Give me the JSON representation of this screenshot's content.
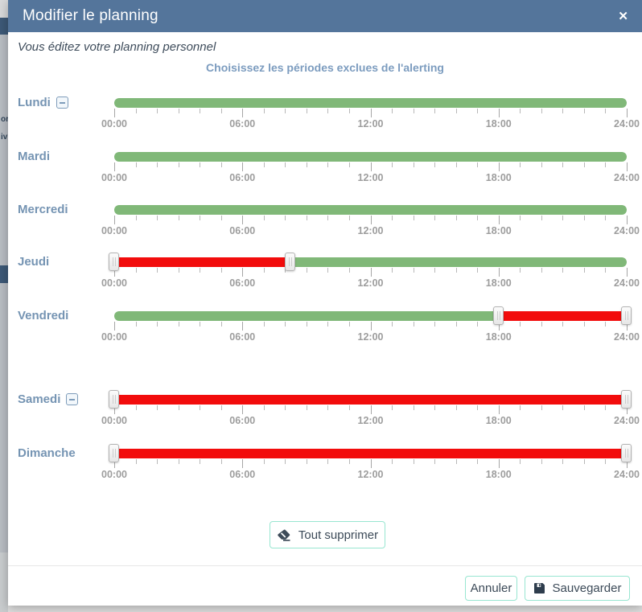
{
  "page_background": {
    "left_strip": {
      "bar_color": "#3d5977",
      "text_fragments": [
        "or",
        "iv"
      ]
    }
  },
  "modal": {
    "title": "Modifier le planning",
    "close_label": "✕",
    "subtitle": "Vous éditez votre planning personnel",
    "heading": "Choisissez les périodes exclues de l'alerting"
  },
  "schedule": {
    "axis_tick_labels": [
      "00:00",
      "06:00",
      "12:00",
      "18:00",
      "24:00"
    ],
    "hours_total": 24,
    "minor_tick_every_hours": 1,
    "major_tick_every_hours": 6,
    "days": [
      {
        "label": "Lundi",
        "removable": true,
        "excluded_periods": []
      },
      {
        "label": "Mardi",
        "removable": false,
        "excluded_periods": []
      },
      {
        "label": "Mercredi",
        "removable": false,
        "excluded_periods": []
      },
      {
        "label": "Jeudi",
        "removable": false,
        "excluded_periods": [
          {
            "from": "00:00",
            "to": "08:15",
            "start_pct": 0,
            "end_pct": 34.4
          }
        ]
      },
      {
        "label": "Vendredi",
        "removable": false,
        "excluded_periods": [
          {
            "from": "18:00",
            "to": "24:00",
            "start_pct": 75,
            "end_pct": 100
          }
        ]
      },
      {
        "label": "Samedi",
        "removable": true,
        "excluded_periods": [
          {
            "from": "00:00",
            "to": "24:00",
            "start_pct": 0,
            "end_pct": 100
          }
        ]
      },
      {
        "label": "Dimanche",
        "removable": false,
        "excluded_periods": [
          {
            "from": "00:00",
            "to": "24:00",
            "start_pct": 0,
            "end_pct": 100
          }
        ]
      }
    ]
  },
  "buttons": {
    "clear_all": "Tout supprimer",
    "cancel": "Annuler",
    "save": "Sauvegarder"
  },
  "colors": {
    "header_bg": "#54759b",
    "included_green": "#80b878",
    "excluded_red": "#f20c0c",
    "button_border_teal": "#98e6d1",
    "day_label_blue": "#7594b3",
    "heading_blue": "#7c9cbf",
    "strip_bar_blue": "#3d5977"
  }
}
